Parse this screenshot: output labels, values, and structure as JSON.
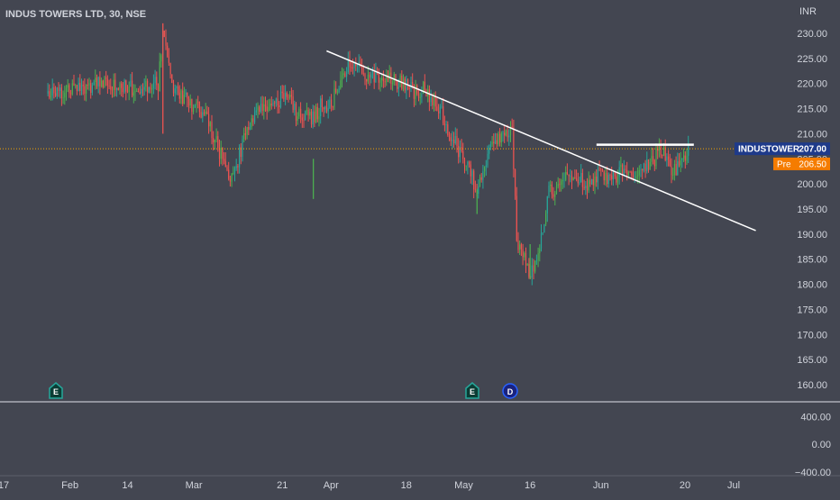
{
  "header": {
    "symbol_title": "INDUS TOWERS LTD, 30, NSE"
  },
  "price_axis": {
    "unit": "INR",
    "ticks": [
      "230.00",
      "225.00",
      "220.00",
      "215.00",
      "210.00",
      "205.00",
      "200.00",
      "195.00",
      "190.00",
      "185.00",
      "180.00",
      "175.00",
      "170.00",
      "165.00",
      "160.00"
    ]
  },
  "indicator_axis": {
    "ticks": [
      "400.00",
      "0.00",
      "−400.00"
    ]
  },
  "time_axis": {
    "labels": [
      "17",
      "Feb",
      "14",
      "Mar",
      "21",
      "Apr",
      "18",
      "May",
      "16",
      "Jun",
      "20",
      "Jul"
    ]
  },
  "badges": {
    "symbol_label": "INDUSTOWER",
    "symbol_price": "207.00",
    "prev_label": "Pre",
    "prev_price": "206.50"
  },
  "markers": [
    {
      "letter": "E",
      "kind": "earnings"
    },
    {
      "letter": "E",
      "kind": "earnings"
    },
    {
      "letter": "D",
      "kind": "dividend"
    }
  ],
  "colors": {
    "background": "#434651",
    "up": "#26a69a",
    "up_bright": "#4caf50",
    "down": "#ef5350",
    "axis_text": "#d1d4dc",
    "trendline": "#ffffff",
    "price_line": "#f7a600",
    "symbol_badge": "#1e3a8a",
    "prev_badge": "#f57c00",
    "earnings": "#26a69a",
    "dividend": "#2962ff"
  },
  "chart_data": {
    "type": "line",
    "title": "INDUS TOWERS LTD, 30, NSE",
    "ylabel": "INR",
    "ylim": [
      157.5,
      232.5
    ],
    "x": [
      "2022-01-27",
      "2022-02-09",
      "2022-02-15",
      "2022-02-21",
      "2022-02-22",
      "2022-02-24",
      "2022-02-28",
      "2022-03-02",
      "2022-03-04",
      "2022-03-07",
      "2022-03-09",
      "2022-03-11",
      "2022-03-14",
      "2022-03-16",
      "2022-03-18",
      "2022-03-22",
      "2022-03-24",
      "2022-03-28",
      "2022-03-30",
      "2022-04-01",
      "2022-04-05",
      "2022-04-07",
      "2022-04-11",
      "2022-04-13",
      "2022-04-18",
      "2022-04-20",
      "2022-04-22",
      "2022-04-26",
      "2022-04-28",
      "2022-05-02",
      "2022-05-04",
      "2022-05-06",
      "2022-05-10",
      "2022-05-12",
      "2022-05-13",
      "2022-05-16",
      "2022-05-18",
      "2022-05-20",
      "2022-05-24",
      "2022-05-26",
      "2022-05-30",
      "2022-06-01",
      "2022-06-03",
      "2022-06-07",
      "2022-06-09",
      "2022-06-13",
      "2022-06-15",
      "2022-06-17",
      "2022-06-21"
    ],
    "series": [
      {
        "values": [
          218,
          220,
          219,
          220,
          230,
          220,
          216,
          215,
          213,
          206,
          200,
          205,
          213,
          216,
          215,
          218,
          214,
          213,
          216,
          216,
          224,
          223,
          221,
          221,
          220,
          218,
          219,
          214,
          210,
          203,
          199,
          205,
          211,
          210,
          188,
          182,
          186,
          198,
          201,
          201,
          200,
          203,
          201,
          203,
          202,
          205,
          207,
          202,
          207
        ]
      }
    ],
    "trendlines": [
      {
        "from": [
          "2022-03-31",
          226.5
        ],
        "to": [
          "2022-07-06",
          190.7
        ]
      },
      {
        "from": [
          "2022-05-31",
          207.8
        ],
        "to": [
          "2022-06-22",
          207.8
        ]
      }
    ],
    "last_price": 207.0,
    "prev_close": 206.5,
    "indicator_ylim": [
      -450,
      560
    ]
  }
}
